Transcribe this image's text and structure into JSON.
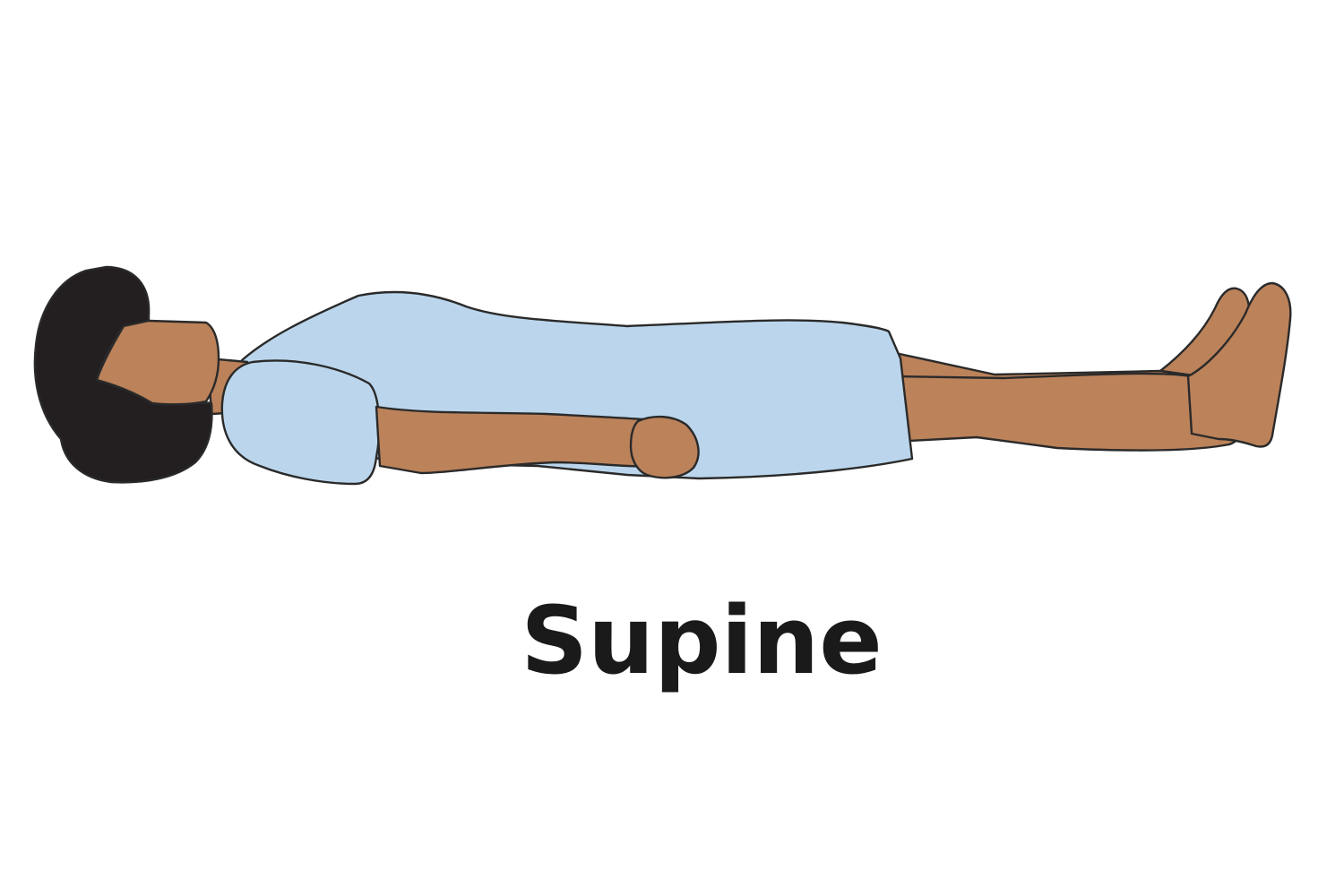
{
  "caption": {
    "text": "Supine"
  },
  "colors": {
    "skin": "#BC825A",
    "gown": "#BBD6EC",
    "hair": "#231F20",
    "outline": "#2A2A2A",
    "caption": "#1A1A1A",
    "background": "#FFFFFF"
  }
}
